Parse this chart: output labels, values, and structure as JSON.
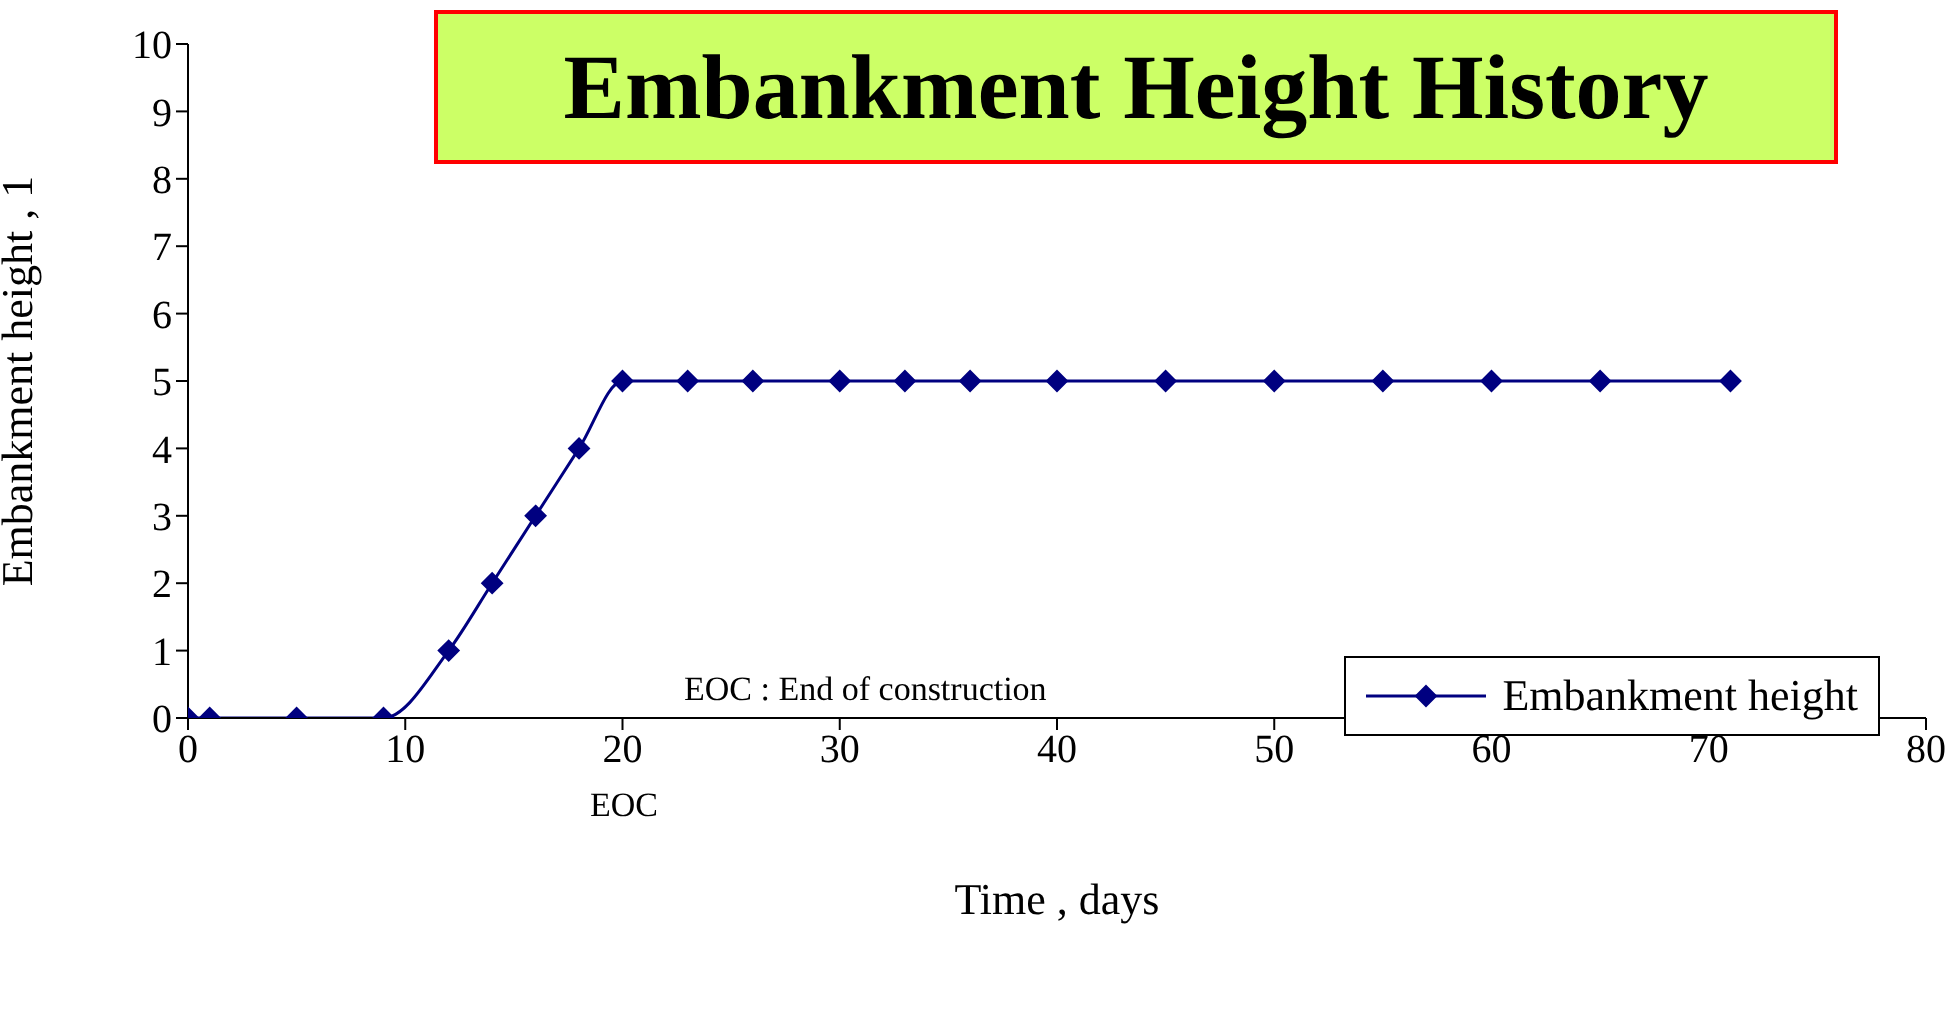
{
  "chart_data": {
    "type": "line",
    "title": "Embankment Height History",
    "xlabel": "Time , days",
    "ylabel": "Embankment height , 1",
    "x": [
      0,
      1,
      5,
      9,
      12,
      14,
      16,
      18,
      20,
      23,
      26,
      30,
      33,
      36,
      40,
      45,
      50,
      55,
      60,
      65,
      71
    ],
    "series": [
      {
        "name": "Embankment height",
        "color": "#000080",
        "values": [
          0,
          0,
          0,
          0,
          1,
          2,
          3,
          4,
          5,
          5,
          5,
          5,
          5,
          5,
          5,
          5,
          5,
          5,
          5,
          5,
          5
        ]
      }
    ],
    "xlim": [
      0,
      80
    ],
    "xticks": [
      0,
      10,
      20,
      30,
      40,
      50,
      60,
      70,
      80
    ],
    "ylim": [
      0,
      10
    ],
    "yticks": [
      0,
      1,
      2,
      3,
      4,
      5,
      6,
      7,
      8,
      9,
      10
    ],
    "annotations": [
      "EOC : End of construction",
      "EOC"
    ],
    "marker": "diamond",
    "line_style": "solid",
    "grid": false,
    "legend": "bottom right"
  }
}
